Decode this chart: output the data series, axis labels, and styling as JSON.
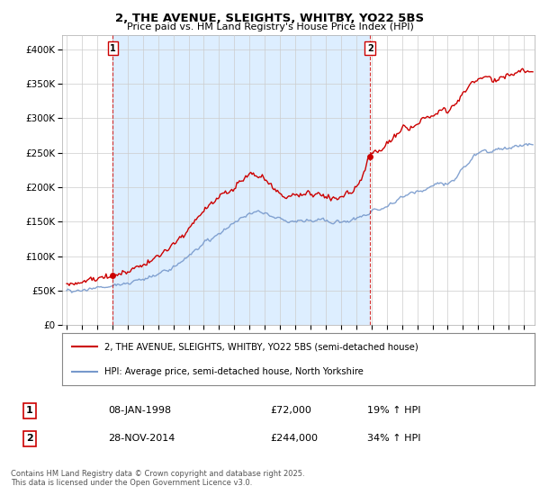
{
  "title": "2, THE AVENUE, SLEIGHTS, WHITBY, YO22 5BS",
  "subtitle": "Price paid vs. HM Land Registry's House Price Index (HPI)",
  "sale_points": [
    {
      "label": "1",
      "date_num": 1998.03,
      "price": 72000
    },
    {
      "label": "2",
      "date_num": 2014.91,
      "price": 244000
    }
  ],
  "annotation_1": {
    "num": "1",
    "date": "08-JAN-1998",
    "price": "£72,000",
    "change": "19% ↑ HPI"
  },
  "annotation_2": {
    "num": "2",
    "date": "28-NOV-2014",
    "price": "£244,000",
    "change": "34% ↑ HPI"
  },
  "legend_property": "2, THE AVENUE, SLEIGHTS, WHITBY, YO22 5BS (semi-detached house)",
  "legend_hpi": "HPI: Average price, semi-detached house, North Yorkshire",
  "footer": "Contains HM Land Registry data © Crown copyright and database right 2025.\nThis data is licensed under the Open Government Licence v3.0.",
  "property_line_color": "#cc0000",
  "hpi_line_color": "#7799cc",
  "sale_point_color": "#cc0000",
  "vline_color": "#cc0000",
  "grid_color": "#cccccc",
  "background_color": "#ffffff",
  "highlight_color": "#ddeeff",
  "ylim": [
    0,
    420000
  ],
  "xlim_start": 1994.7,
  "xlim_end": 2025.7,
  "xtick_years": [
    1995,
    1996,
    1997,
    1998,
    1999,
    2000,
    2001,
    2002,
    2003,
    2004,
    2005,
    2006,
    2007,
    2008,
    2009,
    2010,
    2011,
    2012,
    2013,
    2014,
    2015,
    2016,
    2017,
    2018,
    2019,
    2020,
    2021,
    2022,
    2023,
    2024,
    2025
  ]
}
